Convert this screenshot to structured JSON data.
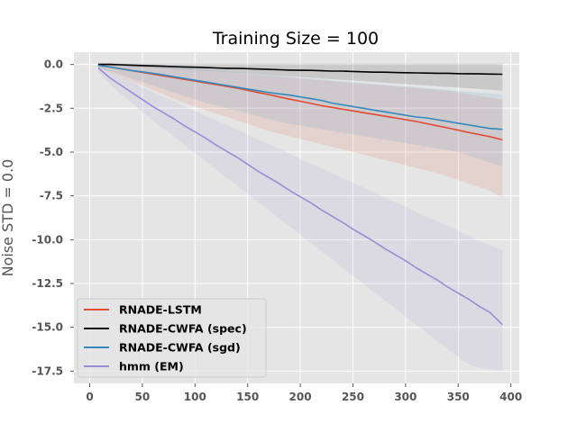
{
  "chart_data": {
    "type": "line",
    "title": "Training Size = 100",
    "xlabel": "",
    "ylabel": "Noise STD = 0.0",
    "xlim": [
      -15,
      408
    ],
    "ylim": [
      -18.2,
      0.7
    ],
    "xticks": [
      0,
      50,
      100,
      150,
      200,
      250,
      300,
      350,
      400
    ],
    "yticks": [
      0.0,
      -2.5,
      -5.0,
      -7.5,
      -10.0,
      -12.5,
      -15.0,
      -17.5
    ],
    "grid": true,
    "legend_position": "lower-left",
    "x": [
      8,
      20,
      30,
      40,
      50,
      60,
      70,
      80,
      90,
      100,
      110,
      120,
      130,
      140,
      150,
      160,
      170,
      180,
      190,
      200,
      210,
      220,
      230,
      240,
      250,
      260,
      270,
      280,
      290,
      300,
      310,
      320,
      330,
      340,
      350,
      360,
      370,
      380,
      392
    ],
    "series": [
      {
        "name": "RNADE-LSTM",
        "color": "#E24A33",
        "values": [
          -0.05,
          -0.15,
          -0.25,
          -0.35,
          -0.45,
          -0.55,
          -0.65,
          -0.75,
          -0.85,
          -0.95,
          -1.05,
          -1.15,
          -1.25,
          -1.35,
          -1.48,
          -1.6,
          -1.72,
          -1.85,
          -1.98,
          -2.1,
          -2.22,
          -2.35,
          -2.45,
          -2.55,
          -2.65,
          -2.75,
          -2.85,
          -2.95,
          -3.05,
          -3.15,
          -3.25,
          -3.38,
          -3.5,
          -3.62,
          -3.75,
          -3.88,
          -4.0,
          -4.12,
          -4.3
        ],
        "band_lower": [
          -0.2,
          -0.45,
          -0.7,
          -0.95,
          -1.2,
          -1.45,
          -1.7,
          -1.95,
          -2.2,
          -2.4,
          -2.6,
          -2.8,
          -3.0,
          -3.2,
          -3.4,
          -3.6,
          -3.8,
          -3.95,
          -4.1,
          -4.25,
          -4.4,
          -4.55,
          -4.7,
          -4.85,
          -5.0,
          -5.15,
          -5.3,
          -5.45,
          -5.6,
          -5.75,
          -5.9,
          -6.05,
          -6.2,
          -6.4,
          -6.6,
          -6.8,
          -7.0,
          -7.2,
          -7.6
        ],
        "band_upper": [
          0.1,
          0.1,
          0.05,
          0.0,
          -0.05,
          -0.1,
          -0.15,
          -0.2,
          -0.25,
          -0.3,
          -0.35,
          -0.4,
          -0.45,
          -0.5,
          -0.55,
          -0.6,
          -0.65,
          -0.7,
          -0.75,
          -0.8,
          -0.85,
          -0.9,
          -0.95,
          -1.0,
          -1.05,
          -1.1,
          -1.15,
          -1.2,
          -1.25,
          -1.3,
          -1.35,
          -1.4,
          -1.45,
          -1.5,
          -1.6,
          -1.7,
          -1.8,
          -1.9,
          -2.0
        ]
      },
      {
        "name": "RNADE-CWFA (spec)",
        "color": "#000000",
        "values": [
          0.0,
          0.0,
          -0.02,
          -0.04,
          -0.06,
          -0.08,
          -0.1,
          -0.12,
          -0.14,
          -0.16,
          -0.18,
          -0.2,
          -0.22,
          -0.22,
          -0.24,
          -0.26,
          -0.28,
          -0.3,
          -0.32,
          -0.33,
          -0.34,
          -0.36,
          -0.38,
          -0.38,
          -0.4,
          -0.42,
          -0.44,
          -0.44,
          -0.46,
          -0.47,
          -0.48,
          -0.49,
          -0.5,
          -0.5,
          -0.52,
          -0.53,
          -0.54,
          -0.55,
          -0.56
        ],
        "band_lower": [
          -0.05,
          -0.07,
          -0.1,
          -0.13,
          -0.16,
          -0.19,
          -0.22,
          -0.25,
          -0.28,
          -0.32,
          -0.36,
          -0.4,
          -0.44,
          -0.48,
          -0.52,
          -0.56,
          -0.6,
          -0.64,
          -0.68,
          -0.72,
          -0.76,
          -0.8,
          -0.84,
          -0.88,
          -0.92,
          -0.96,
          -1.0,
          -1.04,
          -1.08,
          -1.12,
          -1.16,
          -1.2,
          -1.24,
          -1.28,
          -1.32,
          -1.36,
          -1.4,
          -1.44,
          -1.5
        ],
        "band_upper": [
          0.05,
          0.05,
          0.05,
          0.05,
          0.05,
          0.05,
          0.05,
          0.05,
          0.05,
          0.05,
          0.05,
          0.05,
          0.05,
          0.05,
          0.05,
          0.05,
          0.05,
          0.05,
          0.05,
          0.05,
          0.05,
          0.05,
          0.05,
          0.05,
          0.05,
          0.05,
          0.05,
          0.05,
          0.05,
          0.05,
          0.05,
          0.05,
          0.05,
          0.05,
          0.05,
          0.05,
          0.05,
          0.05,
          0.05
        ]
      },
      {
        "name": "RNADE-CWFA (sgd)",
        "color": "#348ABD",
        "values": [
          -0.05,
          -0.15,
          -0.25,
          -0.35,
          -0.42,
          -0.5,
          -0.6,
          -0.7,
          -0.8,
          -0.9,
          -1.0,
          -1.1,
          -1.2,
          -1.3,
          -1.4,
          -1.5,
          -1.6,
          -1.68,
          -1.75,
          -1.85,
          -1.95,
          -2.05,
          -2.2,
          -2.3,
          -2.4,
          -2.5,
          -2.6,
          -2.7,
          -2.8,
          -2.9,
          -3.0,
          -3.05,
          -3.15,
          -3.25,
          -3.35,
          -3.45,
          -3.55,
          -3.65,
          -3.7
        ],
        "band_lower": [
          -0.2,
          -0.4,
          -0.6,
          -0.8,
          -1.0,
          -1.2,
          -1.4,
          -1.6,
          -1.8,
          -2.0,
          -2.2,
          -2.35,
          -2.5,
          -2.65,
          -2.8,
          -2.95,
          -3.1,
          -3.25,
          -3.4,
          -3.5,
          -3.6,
          -3.7,
          -3.8,
          -3.9,
          -4.0,
          -4.1,
          -4.2,
          -4.3,
          -4.4,
          -4.5,
          -4.6,
          -4.7,
          -4.8,
          -4.9,
          -5.0,
          -5.2,
          -5.4,
          -5.6,
          -5.8
        ],
        "band_upper": [
          0.05,
          0.05,
          0.02,
          0.0,
          0.0,
          -0.05,
          -0.1,
          -0.15,
          -0.2,
          -0.25,
          -0.3,
          -0.35,
          -0.4,
          -0.45,
          -0.5,
          -0.55,
          -0.6,
          -0.65,
          -0.7,
          -0.75,
          -0.8,
          -0.85,
          -0.9,
          -0.95,
          -1.0,
          -1.05,
          -1.1,
          -1.15,
          -1.2,
          -1.25,
          -1.3,
          -1.35,
          -1.4,
          -1.45,
          -1.5,
          -1.55,
          -1.6,
          -1.65,
          -1.7
        ]
      },
      {
        "name": "hmm (EM)",
        "color": "#988ED5",
        "values": [
          -0.2,
          -0.8,
          -1.2,
          -1.6,
          -2.0,
          -2.4,
          -2.75,
          -3.1,
          -3.5,
          -3.85,
          -4.2,
          -4.6,
          -4.95,
          -5.3,
          -5.7,
          -6.1,
          -6.45,
          -6.8,
          -7.2,
          -7.55,
          -7.9,
          -8.3,
          -8.65,
          -9.0,
          -9.4,
          -9.75,
          -10.1,
          -10.5,
          -10.85,
          -11.2,
          -11.6,
          -11.95,
          -12.3,
          -12.7,
          -13.05,
          -13.4,
          -13.8,
          -14.15,
          -14.85
        ],
        "band_lower": [
          -0.4,
          -1.2,
          -1.7,
          -2.2,
          -2.7,
          -3.2,
          -3.65,
          -4.1,
          -4.6,
          -5.05,
          -5.5,
          -6.0,
          -6.45,
          -6.9,
          -7.4,
          -7.85,
          -8.3,
          -8.8,
          -9.25,
          -9.7,
          -10.2,
          -10.65,
          -11.1,
          -11.6,
          -12.05,
          -12.5,
          -13.0,
          -13.45,
          -13.9,
          -14.4,
          -14.85,
          -15.3,
          -15.8,
          -16.25,
          -16.7,
          -17.1,
          -17.3,
          -17.4,
          -17.5
        ],
        "band_upper": [
          0.0,
          -0.4,
          -0.7,
          -1.0,
          -1.3,
          -1.6,
          -1.85,
          -2.1,
          -2.4,
          -2.65,
          -2.9,
          -3.2,
          -3.45,
          -3.7,
          -4.0,
          -4.3,
          -4.55,
          -4.8,
          -5.1,
          -5.4,
          -5.65,
          -5.9,
          -6.2,
          -6.5,
          -6.75,
          -7.0,
          -7.3,
          -7.6,
          -7.85,
          -8.1,
          -8.4,
          -8.7,
          -8.95,
          -9.2,
          -9.5,
          -9.8,
          -10.05,
          -10.3,
          -10.6
        ]
      }
    ]
  }
}
